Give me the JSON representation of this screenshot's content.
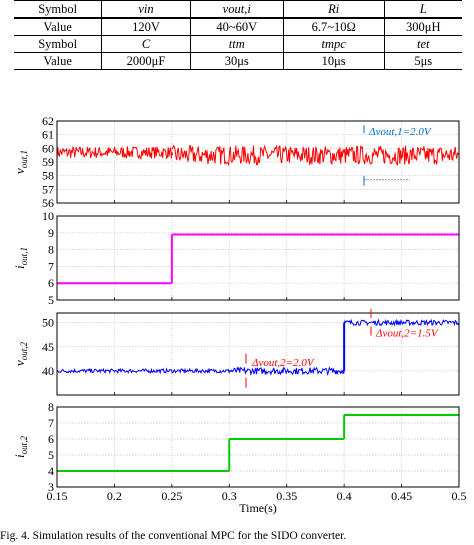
{
  "param_table": {
    "rows": [
      [
        "Symbol",
        "vin",
        "vout,i",
        "Ri",
        "L"
      ],
      [
        "Value",
        "120V",
        "40~60V",
        "6.7~10Ω",
        "300μH"
      ],
      [
        "Symbol",
        "C",
        "ttm",
        "tmpc",
        "tet"
      ],
      [
        "Value",
        "2000μF",
        "30μs",
        "10μs",
        "5μs"
      ]
    ]
  },
  "x_axis": {
    "label": "Time(s)",
    "ticks": [
      "0.15",
      "0.2",
      "0.25",
      "0.3",
      "0.35",
      "0.4",
      "0.45",
      "0.5"
    ],
    "range": [
      0.15,
      0.5
    ]
  },
  "chart_data": [
    {
      "type": "line",
      "ylabel": "vout,1",
      "ylim": [
        56,
        62
      ],
      "yticks": [
        "56",
        "57",
        "58",
        "59",
        "60",
        "61",
        "62"
      ],
      "color": "#ff0000",
      "series": [
        {
          "segments": [
            {
              "x": [
                0.15,
                0.25
              ],
              "center": 59.7,
              "ripple": 0.9
            },
            {
              "x": [
                0.25,
                0.5
              ],
              "center": 59.5,
              "ripple": 1.4
            }
          ]
        }
      ],
      "annotations": [
        {
          "text": "Δvout,1=2.0V",
          "color": "#0070c0"
        }
      ]
    },
    {
      "type": "line",
      "ylabel": "iout,1",
      "ylim": [
        5,
        10
      ],
      "yticks": [
        "5",
        "6",
        "7",
        "8",
        "9",
        "10"
      ],
      "color": "#ff00ff",
      "series": [
        {
          "segments": [
            {
              "x": [
                0.15,
                0.25
              ],
              "center": 6.0,
              "ripple": 0.04
            },
            {
              "x": [
                0.25,
                0.5
              ],
              "center": 8.9,
              "ripple": 0.04
            }
          ]
        }
      ]
    },
    {
      "type": "line",
      "ylabel": "vout,2",
      "ylim": [
        35,
        52
      ],
      "yticks": [
        "40",
        "45",
        "50"
      ],
      "color": "#0000ff",
      "series": [
        {
          "segments": [
            {
              "x": [
                0.15,
                0.3
              ],
              "center": 40.0,
              "ripple": 0.8
            },
            {
              "x": [
                0.3,
                0.4
              ],
              "center": 40.0,
              "ripple": 1.4
            },
            {
              "x": [
                0.4,
                0.5
              ],
              "center": 50.0,
              "ripple": 1.1
            }
          ]
        }
      ],
      "annotations": [
        {
          "text": "Δvout,2=2.0V",
          "color": "#ff0000"
        },
        {
          "text": "Δvout,2=1.5V",
          "color": "#ff0000"
        }
      ]
    },
    {
      "type": "line",
      "ylabel": "iout,2",
      "ylim": [
        3,
        8
      ],
      "yticks": [
        "3",
        "4",
        "5",
        "6",
        "7",
        "8"
      ],
      "color": "#00cc00",
      "series": [
        {
          "segments": [
            {
              "x": [
                0.15,
                0.3
              ],
              "center": 4.0,
              "ripple": 0.04
            },
            {
              "x": [
                0.3,
                0.4
              ],
              "center": 6.0,
              "ripple": 0.04
            },
            {
              "x": [
                0.4,
                0.5
              ],
              "center": 7.5,
              "ripple": 0.04
            }
          ]
        }
      ]
    }
  ],
  "caption": "Fig. 4. Simulation results of the conventional MPC for the SIDO converter."
}
